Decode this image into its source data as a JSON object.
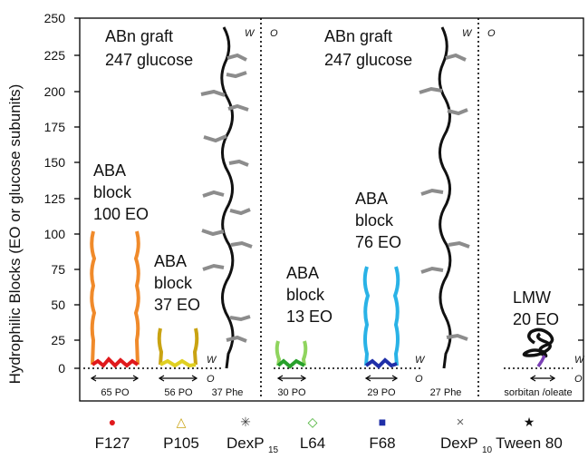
{
  "y_axis": {
    "label": "Hydrophilic Blocks (EO or glucose subunits)",
    "ticks": [
      "250",
      "225",
      "200",
      "175",
      "150",
      "125",
      "100",
      "75",
      "50",
      "25",
      "0"
    ]
  },
  "phase_labels": {
    "water": "W",
    "oil": "O"
  },
  "annotations": {
    "graft_left": {
      "line1": "ABn graft",
      "line2": "247 glucose"
    },
    "graft_right": {
      "line1": "ABn graft",
      "line2": "247 glucose"
    },
    "f127": {
      "line1": "ABA",
      "line2": "block",
      "line3": "100 EO"
    },
    "p105": {
      "line1": "ABA",
      "line2": "block",
      "line3": "37 EO"
    },
    "l64": {
      "line1": "ABA",
      "line2": "block",
      "line3": "13 EO"
    },
    "f68": {
      "line1": "ABA",
      "line2": "block",
      "line3": "76 EO"
    },
    "tween": {
      "line1": "LMW",
      "line2": "20 EO"
    }
  },
  "hydrophobic_labels": [
    "65 PO",
    "56 PO",
    "37 Phe",
    "30 PO",
    "29 PO",
    "27 Phe",
    "sorbitan /oleate"
  ],
  "legend": [
    {
      "name": "F127",
      "sub": "",
      "marker": "●",
      "color": "#e0191c"
    },
    {
      "name": "P105",
      "sub": "",
      "marker": "△",
      "color": "#c9a312"
    },
    {
      "name": "DexP",
      "sub": "15",
      "marker": "✳",
      "color": "#444444"
    },
    {
      "name": "L64",
      "sub": "",
      "marker": "◇",
      "color": "#3fae2a"
    },
    {
      "name": "F68",
      "sub": "",
      "marker": "■",
      "color": "#1f2fa8"
    },
    {
      "name": "DexP",
      "sub": "10",
      "marker": "×",
      "color": "#666666"
    },
    {
      "name": "Tween 80",
      "sub": "",
      "marker": "★",
      "color": "#111111"
    }
  ],
  "colors": {
    "f127_block": "#f08a2a",
    "p105_block": "#c9a312",
    "l64_block": "#8fd45e",
    "f68_block": "#29b2e6",
    "dex_backbone": "#111111",
    "dex_graft": "#8c8c8c",
    "tween_tail": "#7a3fb5"
  }
}
